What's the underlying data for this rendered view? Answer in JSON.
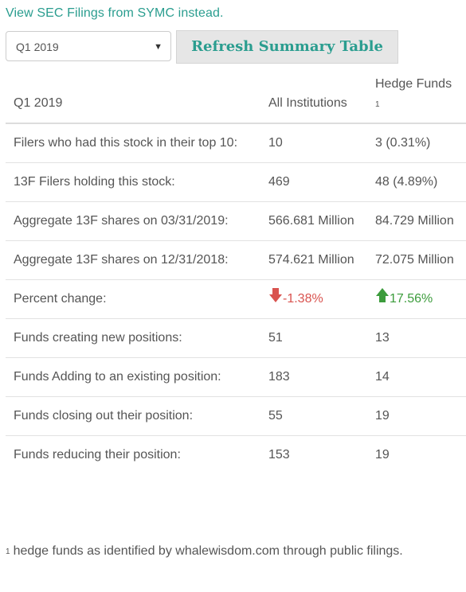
{
  "link_text": "View SEC Filings from SYMC instead.",
  "controls": {
    "quarter_selected": "Q1 2019",
    "refresh_label": "Refresh Summary Table"
  },
  "table": {
    "headers": {
      "period": "Q1 2019",
      "all_institutions": "All Institutions",
      "hedge_funds": "Hedge Funds",
      "hedge_funds_note_mark": "1"
    },
    "rows": [
      {
        "label": "Filers who had this stock in their top 10:",
        "all": "10",
        "hedge": "3 (0.31%)"
      },
      {
        "label": "13F Filers holding this stock:",
        "all": "469",
        "hedge": "48 (4.89%)"
      },
      {
        "label": "Aggregate 13F shares on 03/31/2019:",
        "all": "566.681 Million",
        "hedge": "84.729 Million"
      },
      {
        "label": "Aggregate 13F shares on 12/31/2018:",
        "all": "574.621 Million",
        "hedge": "72.075 Million"
      },
      {
        "label": "Percent change:",
        "all": "-1.38%",
        "hedge": "17.56%"
      },
      {
        "label": "Funds creating new positions:",
        "all": "51",
        "hedge": "13"
      },
      {
        "label": "Funds Adding to an existing position:",
        "all": "183",
        "hedge": "14"
      },
      {
        "label": "Funds closing out their position:",
        "all": "55",
        "hedge": "19"
      },
      {
        "label": "Funds reducing their position:",
        "all": "153",
        "hedge": "19"
      }
    ]
  },
  "colors": {
    "link": "#2a9d8f",
    "negative": "#d9534f",
    "positive": "#3c9c3c"
  },
  "icons": {
    "negative_change": "arrow-down-icon",
    "positive_change": "arrow-up-icon"
  },
  "footnote": {
    "mark": "1",
    "text": "hedge funds as identified by whalewisdom.com through public filings."
  }
}
